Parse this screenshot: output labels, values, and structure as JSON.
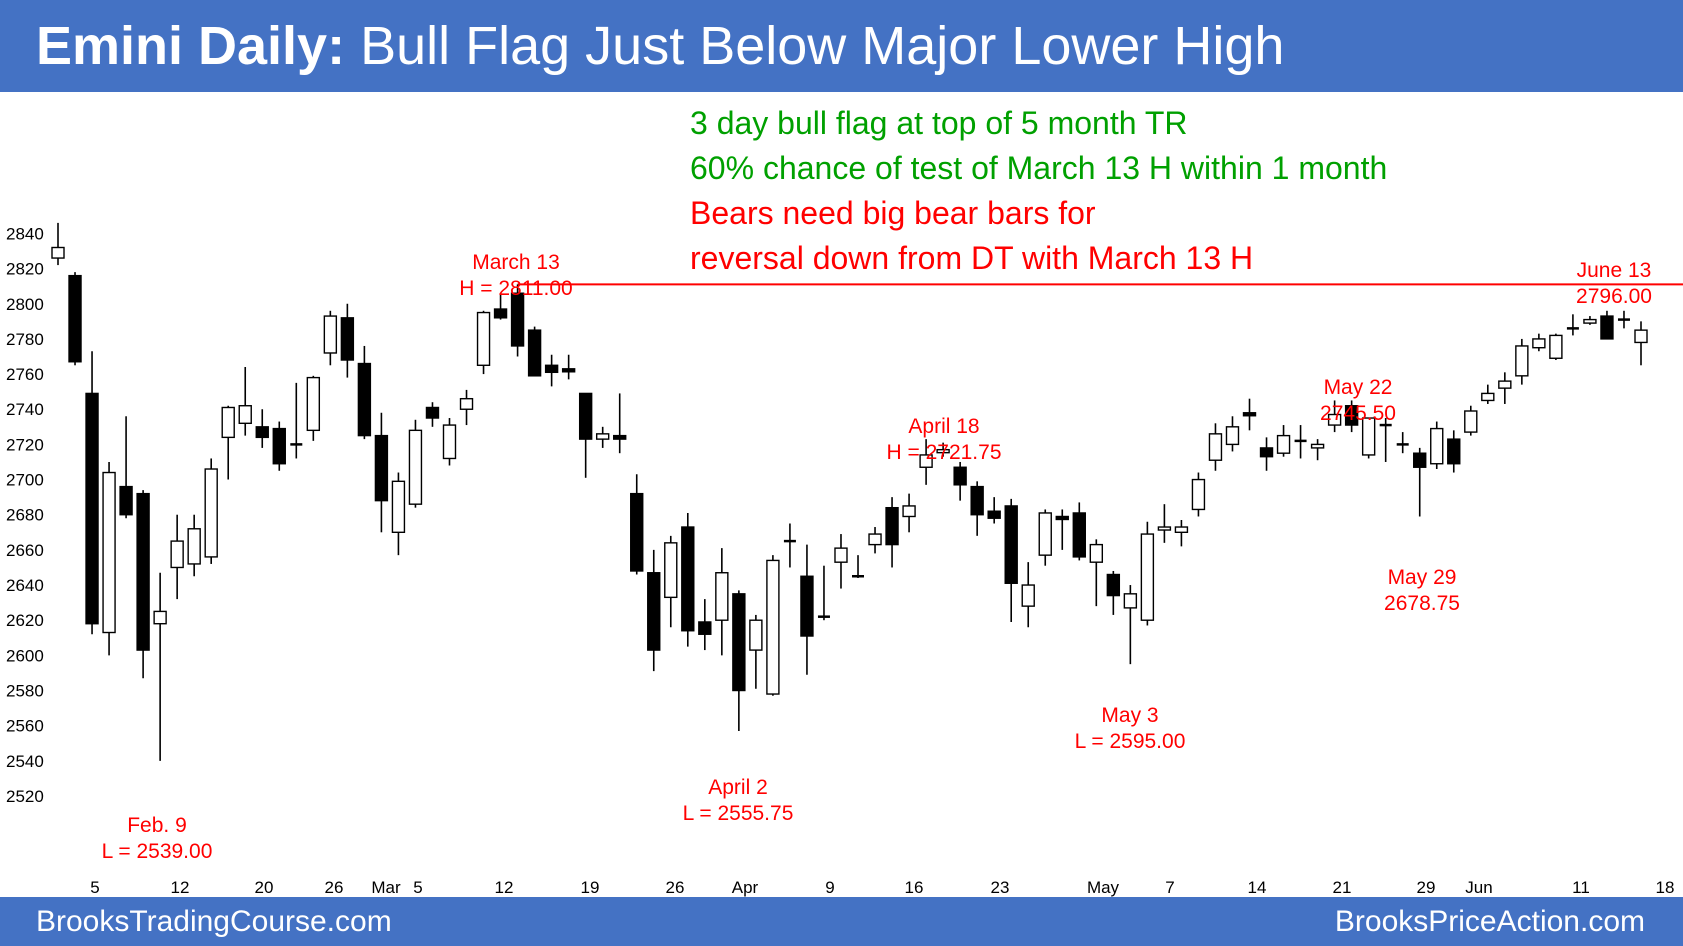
{
  "header": {
    "title_bold": "Emini Daily:",
    "title_rest": " Bull Flag Just Below Major Lower High"
  },
  "footer": {
    "left": "BrooksTradingCourse.com",
    "right": "BrooksPriceAction.com"
  },
  "colors": {
    "banner": "#4472c4",
    "green_text": "#00a000",
    "red_text": "#ff0000",
    "bear_bar": "#000000",
    "bull_bar": "#ffffff"
  },
  "chart_data": {
    "type": "candlestick",
    "title": "",
    "ylim": [
      2510,
      2850
    ],
    "y_ticks": [
      2520,
      2540,
      2560,
      2580,
      2600,
      2620,
      2640,
      2660,
      2680,
      2700,
      2720,
      2740,
      2760,
      2780,
      2800,
      2820,
      2840
    ],
    "x_tick_labels": [
      "5",
      "12",
      "20",
      "26",
      "Mar",
      "5",
      "12",
      "19",
      "26",
      "Apr",
      "9",
      "16",
      "23",
      "May",
      "7",
      "14",
      "21",
      "29",
      "Jun",
      "11",
      "18"
    ],
    "grid": false,
    "bars": [
      {
        "o": 2826,
        "h": 2846,
        "l": 2822,
        "c": 2832
      },
      {
        "o": 2816,
        "h": 2818,
        "l": 2765,
        "c": 2767
      },
      {
        "o": 2749,
        "h": 2773,
        "l": 2612,
        "c": 2618
      },
      {
        "o": 2613,
        "h": 2710,
        "l": 2600,
        "c": 2704
      },
      {
        "o": 2696,
        "h": 2736,
        "l": 2678,
        "c": 2680
      },
      {
        "o": 2692,
        "h": 2694,
        "l": 2587,
        "c": 2603
      },
      {
        "o": 2618,
        "h": 2647,
        "l": 2540,
        "c": 2625
      },
      {
        "o": 2650,
        "h": 2680,
        "l": 2632,
        "c": 2665
      },
      {
        "o": 2652,
        "h": 2680,
        "l": 2645,
        "c": 2672
      },
      {
        "o": 2656,
        "h": 2712,
        "l": 2652,
        "c": 2706
      },
      {
        "o": 2724,
        "h": 2742,
        "l": 2700,
        "c": 2741
      },
      {
        "o": 2732,
        "h": 2764,
        "l": 2725,
        "c": 2742
      },
      {
        "o": 2730,
        "h": 2740,
        "l": 2718,
        "c": 2724
      },
      {
        "o": 2729,
        "h": 2733,
        "l": 2705,
        "c": 2709
      },
      {
        "o": 2720,
        "h": 2755,
        "l": 2712,
        "c": 2720
      },
      {
        "o": 2728,
        "h": 2759,
        "l": 2722,
        "c": 2758
      },
      {
        "o": 2772,
        "h": 2796,
        "l": 2765,
        "c": 2793
      },
      {
        "o": 2792,
        "h": 2800,
        "l": 2758,
        "c": 2768
      },
      {
        "o": 2766,
        "h": 2776,
        "l": 2723,
        "c": 2725
      },
      {
        "o": 2725,
        "h": 2738,
        "l": 2670,
        "c": 2688
      },
      {
        "o": 2670,
        "h": 2704,
        "l": 2657,
        "c": 2699
      },
      {
        "o": 2686,
        "h": 2734,
        "l": 2684,
        "c": 2728
      },
      {
        "o": 2741,
        "h": 2744,
        "l": 2730,
        "c": 2735
      },
      {
        "o": 2712,
        "h": 2735,
        "l": 2708,
        "c": 2731
      },
      {
        "o": 2740,
        "h": 2751,
        "l": 2731,
        "c": 2746
      },
      {
        "o": 2765,
        "h": 2796,
        "l": 2760,
        "c": 2795
      },
      {
        "o": 2797,
        "h": 2806,
        "l": 2791,
        "c": 2792
      },
      {
        "o": 2806,
        "h": 2811,
        "l": 2770,
        "c": 2776
      },
      {
        "o": 2785,
        "h": 2787,
        "l": 2760,
        "c": 2759
      },
      {
        "o": 2765,
        "h": 2771,
        "l": 2753,
        "c": 2761
      },
      {
        "o": 2763,
        "h": 2771,
        "l": 2757,
        "c": 2762
      },
      {
        "o": 2749,
        "h": 2749,
        "l": 2701,
        "c": 2723
      },
      {
        "o": 2723,
        "h": 2730,
        "l": 2718,
        "c": 2726
      },
      {
        "o": 2725,
        "h": 2749,
        "l": 2715,
        "c": 2723
      },
      {
        "o": 2692,
        "h": 2703,
        "l": 2646,
        "c": 2648
      },
      {
        "o": 2647,
        "h": 2660,
        "l": 2591,
        "c": 2603
      },
      {
        "o": 2633,
        "h": 2668,
        "l": 2616,
        "c": 2664
      },
      {
        "o": 2673,
        "h": 2681,
        "l": 2605,
        "c": 2614
      },
      {
        "o": 2619,
        "h": 2632,
        "l": 2603,
        "c": 2612
      },
      {
        "o": 2620,
        "h": 2661,
        "l": 2600,
        "c": 2647
      },
      {
        "o": 2635,
        "h": 2637,
        "l": 2557,
        "c": 2580
      },
      {
        "o": 2603,
        "h": 2623,
        "l": 2581,
        "c": 2620
      },
      {
        "o": 2578,
        "h": 2657,
        "l": 2577,
        "c": 2654
      },
      {
        "o": 2665,
        "h": 2675,
        "l": 2650,
        "c": 2665
      },
      {
        "o": 2645,
        "h": 2663,
        "l": 2589,
        "c": 2611
      },
      {
        "o": 2622,
        "h": 2651,
        "l": 2620,
        "c": 2622
      },
      {
        "o": 2653,
        "h": 2669,
        "l": 2638,
        "c": 2661
      },
      {
        "o": 2645,
        "h": 2657,
        "l": 2644,
        "c": 2645
      },
      {
        "o": 2663,
        "h": 2673,
        "l": 2658,
        "c": 2669
      },
      {
        "o": 2684,
        "h": 2690,
        "l": 2650,
        "c": 2663
      },
      {
        "o": 2679,
        "h": 2692,
        "l": 2670,
        "c": 2685
      },
      {
        "o": 2707,
        "h": 2723,
        "l": 2697,
        "c": 2714
      },
      {
        "o": 2716,
        "h": 2721,
        "l": 2713,
        "c": 2717
      },
      {
        "o": 2707,
        "h": 2710,
        "l": 2688,
        "c": 2697
      },
      {
        "o": 2696,
        "h": 2699,
        "l": 2668,
        "c": 2680
      },
      {
        "o": 2682,
        "h": 2690,
        "l": 2675,
        "c": 2678
      },
      {
        "o": 2685,
        "h": 2689,
        "l": 2619,
        "c": 2641
      },
      {
        "o": 2628,
        "h": 2653,
        "l": 2616,
        "c": 2640
      },
      {
        "o": 2657,
        "h": 2683,
        "l": 2651,
        "c": 2681
      },
      {
        "o": 2679,
        "h": 2683,
        "l": 2660,
        "c": 2678
      },
      {
        "o": 2681,
        "h": 2687,
        "l": 2654,
        "c": 2656
      },
      {
        "o": 2653,
        "h": 2666,
        "l": 2628,
        "c": 2663
      },
      {
        "o": 2646,
        "h": 2648,
        "l": 2623,
        "c": 2634
      },
      {
        "o": 2627,
        "h": 2640,
        "l": 2595,
        "c": 2635
      },
      {
        "o": 2620,
        "h": 2676,
        "l": 2617,
        "c": 2669
      },
      {
        "o": 2672,
        "h": 2686,
        "l": 2664,
        "c": 2673
      },
      {
        "o": 2670,
        "h": 2677,
        "l": 2662,
        "c": 2673
      },
      {
        "o": 2683,
        "h": 2704,
        "l": 2679,
        "c": 2700
      },
      {
        "o": 2711,
        "h": 2732,
        "l": 2705,
        "c": 2726
      },
      {
        "o": 2720,
        "h": 2736,
        "l": 2716,
        "c": 2730
      },
      {
        "o": 2738,
        "h": 2746,
        "l": 2728,
        "c": 2737
      },
      {
        "o": 2718,
        "h": 2724,
        "l": 2705,
        "c": 2713
      },
      {
        "o": 2715,
        "h": 2731,
        "l": 2713,
        "c": 2725
      },
      {
        "o": 2722,
        "h": 2731,
        "l": 2712,
        "c": 2722
      },
      {
        "o": 2718,
        "h": 2723,
        "l": 2711,
        "c": 2720
      },
      {
        "o": 2731,
        "h": 2745,
        "l": 2727,
        "c": 2737
      },
      {
        "o": 2742,
        "h": 2745,
        "l": 2727,
        "c": 2731
      },
      {
        "o": 2714,
        "h": 2732,
        "l": 2712,
        "c": 2735
      },
      {
        "o": 2731,
        "h": 2735,
        "l": 2710,
        "c": 2731
      },
      {
        "o": 2720,
        "h": 2727,
        "l": 2715,
        "c": 2720
      },
      {
        "o": 2715,
        "h": 2718,
        "l": 2679,
        "c": 2707
      },
      {
        "o": 2709,
        "h": 2733,
        "l": 2706,
        "c": 2729
      },
      {
        "o": 2723,
        "h": 2728,
        "l": 2704,
        "c": 2709
      },
      {
        "o": 2727,
        "h": 2742,
        "l": 2725,
        "c": 2739
      },
      {
        "o": 2745,
        "h": 2754,
        "l": 2743,
        "c": 2749
      },
      {
        "o": 2752,
        "h": 2761,
        "l": 2743,
        "c": 2756
      },
      {
        "o": 2759,
        "h": 2780,
        "l": 2754,
        "c": 2776
      },
      {
        "o": 2775,
        "h": 2783,
        "l": 2773,
        "c": 2780
      },
      {
        "o": 2769,
        "h": 2783,
        "l": 2768,
        "c": 2782
      },
      {
        "o": 2786,
        "h": 2794,
        "l": 2782,
        "c": 2786
      },
      {
        "o": 2789,
        "h": 2793,
        "l": 2788,
        "c": 2791
      },
      {
        "o": 2793,
        "h": 2796,
        "l": 2780,
        "c": 2780
      },
      {
        "o": 2791,
        "h": 2796,
        "l": 2786,
        "c": 2791
      },
      {
        "o": 2778,
        "h": 2790,
        "l": 2765,
        "c": 2785
      }
    ],
    "horizontal_line": {
      "value": 2811,
      "from_bar": 27
    },
    "annotations": {
      "header_lines": [
        {
          "text": "3 day bull flag at top of 5 month TR",
          "color": "green"
        },
        {
          "text": "60% chance of test of March 13 H within 1 month",
          "color": "green"
        },
        {
          "text": "Bears need big bear bars for",
          "color": "red"
        },
        {
          "text": "reversal down from DT with March 13 H",
          "color": "red"
        }
      ],
      "labels": [
        {
          "line1": "March 13",
          "line2": "H = 2811.00"
        },
        {
          "line1": "June 13",
          "line2": "2796.00"
        },
        {
          "line1": "May 22",
          "line2": "2745.50"
        },
        {
          "line1": "April 18",
          "line2": "H = 2721.75"
        },
        {
          "line1": "May 29",
          "line2": "2678.75"
        },
        {
          "line1": "May 3",
          "line2": "L = 2595.00"
        },
        {
          "line1": "April 2",
          "line2": "L = 2555.75"
        },
        {
          "line1": "Feb. 9",
          "line2": "L = 2539.00"
        }
      ]
    }
  }
}
